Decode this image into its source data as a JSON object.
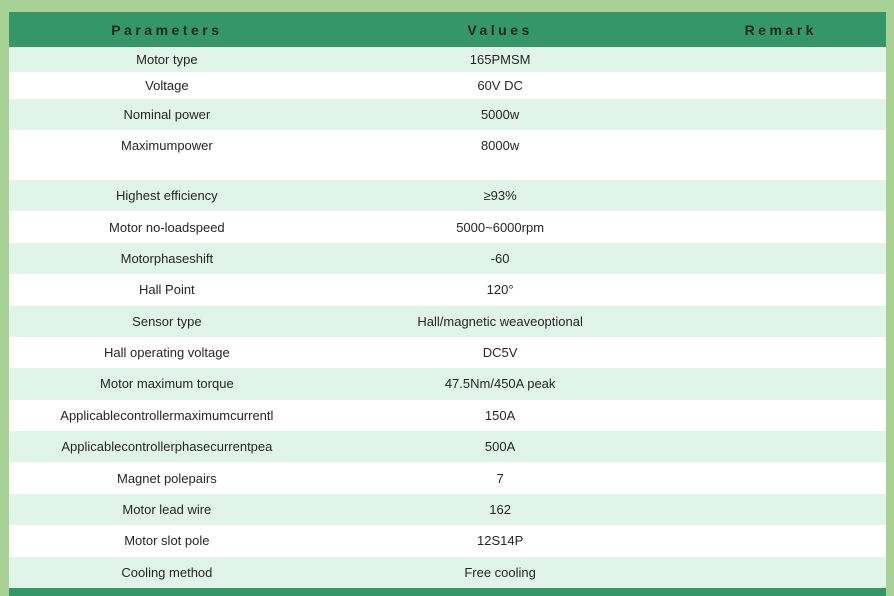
{
  "table": {
    "headers": {
      "parameters": "Parameters",
      "values": "Values",
      "remark": "Remark"
    },
    "rows": [
      {
        "param": "Motor type",
        "value": "165PMSM",
        "remark": ""
      },
      {
        "param": "Voltage",
        "value": "60V DC",
        "remark": ""
      },
      {
        "param": "Nominal power",
        "value": "5000w",
        "remark": ""
      },
      {
        "param": "Maximumpower",
        "value": "8000w",
        "remark": ""
      },
      {
        "param": "Highest efficiency",
        "value": "≥93%",
        "remark": ""
      },
      {
        "param": "Motor no-loadspeed",
        "value": "5000~6000rpm",
        "remark": ""
      },
      {
        "param": "Motorphaseshift",
        "value": "-60",
        "remark": ""
      },
      {
        "param": "Hall Point",
        "value": "120°",
        "remark": ""
      },
      {
        "param": "Sensor type",
        "value": "Hall/magnetic weaveoptional",
        "remark": ""
      },
      {
        "param": "Hall operating voltage",
        "value": "DC5V",
        "remark": ""
      },
      {
        "param": "Motor maximum torque",
        "value": "47.5Nm/450A peak",
        "remark": ""
      },
      {
        "param": "Applicablecontrollermaximumcurrentl",
        "value": "150A",
        "remark": ""
      },
      {
        "param": "Applicablecontrollerphasecurrentpea",
        "value": "500A",
        "remark": ""
      },
      {
        "param": "Magnet polepairs",
        "value": "7",
        "remark": ""
      },
      {
        "param": "Motor lead wire",
        "value": "162",
        "remark": ""
      },
      {
        "param": "Motor slot pole",
        "value": "12S14P",
        "remark": ""
      },
      {
        "param": "Cooling method",
        "value": "Free cooling",
        "remark": ""
      }
    ],
    "colors": {
      "header_background": "#359768",
      "header_text": "#1b2a20",
      "row_alternate": "#e0f4ea",
      "row_white": "#ffffff",
      "frame": "#a8d196",
      "body_text": "#262626",
      "bottom_bar": "#359768"
    }
  }
}
